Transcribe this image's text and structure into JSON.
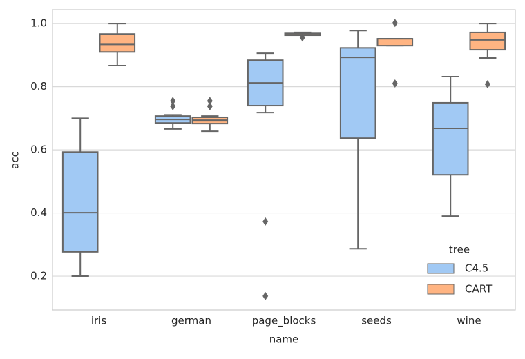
{
  "chart_data": {
    "type": "box",
    "x_label": "name",
    "y_label": "acc",
    "categories": [
      "iris",
      "german",
      "page_blocks",
      "seeds",
      "wine"
    ],
    "ylim": [
      0.093,
      1.044
    ],
    "yticks": [
      0.2,
      0.4,
      0.6,
      0.8,
      {
        "value": 1,
        "label": "1.0"
      }
    ],
    "grid": true,
    "legend_title": "tree",
    "legend_position": "lower right",
    "series": [
      {
        "name": "C4.5",
        "color": "#a1c9f4",
        "boxes": [
          {
            "low": 0.2,
            "q1": 0.277,
            "median": 0.401,
            "q3": 0.593,
            "high": 0.7,
            "outliers": []
          },
          {
            "low": 0.666,
            "q1": 0.685,
            "median": 0.696,
            "q3": 0.707,
            "high": 0.711,
            "outliers": [
              0.755,
              0.738
            ]
          },
          {
            "low": 0.718,
            "q1": 0.74,
            "median": 0.812,
            "q3": 0.884,
            "high": 0.906,
            "outliers": [
              0.373,
              0.137
            ]
          },
          {
            "low": 0.287,
            "q1": 0.637,
            "median": 0.893,
            "q3": 0.923,
            "high": 0.978,
            "outliers": []
          },
          {
            "low": 0.39,
            "q1": 0.521,
            "median": 0.668,
            "q3": 0.749,
            "high": 0.832,
            "outliers": []
          }
        ]
      },
      {
        "name": "CART",
        "color": "#ffb482",
        "boxes": [
          {
            "low": 0.867,
            "q1": 0.91,
            "median": 0.934,
            "q3": 0.967,
            "high": 1.0,
            "outliers": []
          },
          {
            "low": 0.659,
            "q1": 0.683,
            "median": 0.694,
            "q3": 0.703,
            "high": 0.707,
            "outliers": [
              0.755,
              0.738
            ]
          },
          {
            "low": 0.963,
            "q1": 0.963,
            "median": 0.965,
            "q3": 0.969,
            "high": 0.972,
            "outliers": [
              0.956
            ]
          },
          {
            "low": 0.93,
            "q1": 0.93,
            "median": 0.952,
            "q3": 0.952,
            "high": 0.952,
            "outliers": [
              1.002,
              0.81
            ]
          },
          {
            "low": 0.891,
            "q1": 0.917,
            "median": 0.948,
            "q3": 0.972,
            "high": 1.0,
            "outliers": [
              0.808
            ]
          }
        ]
      }
    ]
  }
}
